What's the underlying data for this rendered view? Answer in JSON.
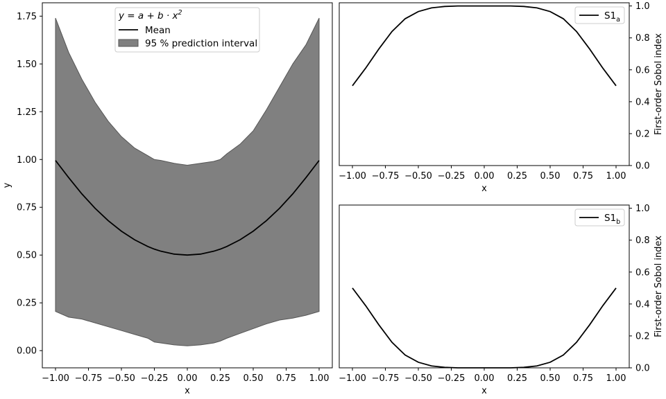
{
  "chart_data": [
    {
      "type": "area",
      "xlabel": "x",
      "ylabel": "y",
      "xlim": [
        -1.1,
        1.1
      ],
      "ylim": [
        -0.09,
        1.82
      ],
      "xticks": [
        -1.0,
        -0.75,
        -0.5,
        -0.25,
        0.0,
        0.25,
        0.5,
        0.75,
        1.0
      ],
      "xtick_labels": [
        "−1.00",
        "−0.75",
        "−0.50",
        "−0.25",
        "0.00",
        "0.25",
        "0.50",
        "0.75",
        "1.00"
      ],
      "yticks": [
        0.0,
        0.25,
        0.5,
        0.75,
        1.0,
        1.25,
        1.5,
        1.75
      ],
      "ytick_labels": [
        "0.00",
        "0.25",
        "0.50",
        "0.75",
        "1.00",
        "1.25",
        "1.50",
        "1.75"
      ],
      "legend": {
        "placement": "upper center",
        "title_plain": "y = a + b · x",
        "title_superscript": "2",
        "entries": [
          "Mean",
          "95 % prediction interval"
        ]
      },
      "x": [
        -1.0,
        -0.9,
        -0.8,
        -0.7,
        -0.6,
        -0.5,
        -0.4,
        -0.3,
        -0.25,
        -0.2,
        -0.1,
        0.0,
        0.1,
        0.2,
        0.25,
        0.3,
        0.4,
        0.5,
        0.6,
        0.7,
        0.8,
        0.9,
        1.0
      ],
      "series": [
        {
          "name": "Mean",
          "values": [
            0.995,
            0.905,
            0.82,
            0.745,
            0.68,
            0.625,
            0.58,
            0.545,
            0.531,
            0.52,
            0.505,
            0.5,
            0.505,
            0.52,
            0.531,
            0.545,
            0.58,
            0.625,
            0.68,
            0.745,
            0.82,
            0.905,
            0.995
          ]
        },
        {
          "name": "95 % prediction interval (upper)",
          "values": [
            1.74,
            1.56,
            1.42,
            1.3,
            1.2,
            1.12,
            1.06,
            1.02,
            1.0,
            0.995,
            0.98,
            0.97,
            0.98,
            0.99,
            1.0,
            1.03,
            1.08,
            1.15,
            1.26,
            1.38,
            1.5,
            1.6,
            1.74
          ]
        },
        {
          "name": "95 % prediction interval (lower)",
          "values": [
            0.205,
            0.175,
            0.165,
            0.145,
            0.125,
            0.105,
            0.085,
            0.065,
            0.045,
            0.04,
            0.03,
            0.025,
            0.03,
            0.04,
            0.05,
            0.065,
            0.09,
            0.115,
            0.14,
            0.16,
            0.17,
            0.185,
            0.205
          ]
        }
      ],
      "grid": false
    },
    {
      "type": "line",
      "xlabel": "x",
      "ylabel": "First-order Sobol index",
      "ylabel_side": "right",
      "xlim": [
        -1.1,
        1.1
      ],
      "ylim": [
        0.0,
        1.02
      ],
      "xticks": [
        -1.0,
        -0.75,
        -0.5,
        -0.25,
        0.0,
        0.25,
        0.5,
        0.75,
        1.0
      ],
      "xtick_labels": [
        "−1.00",
        "−0.75",
        "−0.50",
        "−0.25",
        "0.00",
        "0.25",
        "0.50",
        "0.75",
        "1.00"
      ],
      "yticks": [
        0.0,
        0.2,
        0.4,
        0.6,
        0.8,
        1.0
      ],
      "ytick_labels": [
        "0.0",
        "0.2",
        "0.4",
        "0.6",
        "0.8",
        "1.0"
      ],
      "legend": {
        "placement": "upper right",
        "entries": [
          {
            "base": "S1",
            "sub": "a"
          }
        ]
      },
      "x": [
        -1.0,
        -0.9,
        -0.8,
        -0.7,
        -0.6,
        -0.5,
        -0.4,
        -0.3,
        -0.2,
        -0.1,
        0.0,
        0.1,
        0.2,
        0.3,
        0.4,
        0.5,
        0.6,
        0.7,
        0.8,
        0.9,
        1.0
      ],
      "series": [
        {
          "name": "S1a",
          "values": [
            0.5,
            0.61,
            0.73,
            0.84,
            0.92,
            0.965,
            0.988,
            0.997,
            1.0,
            1.0,
            1.0,
            1.0,
            1.0,
            0.997,
            0.988,
            0.965,
            0.92,
            0.84,
            0.73,
            0.61,
            0.5
          ]
        }
      ],
      "grid": false
    },
    {
      "type": "line",
      "xlabel": "x",
      "ylabel": "First-order Sobol index",
      "ylabel_side": "right",
      "xlim": [
        -1.1,
        1.1
      ],
      "ylim": [
        0.0,
        1.02
      ],
      "xticks": [
        -1.0,
        -0.75,
        -0.5,
        -0.25,
        0.0,
        0.25,
        0.5,
        0.75,
        1.0
      ],
      "xtick_labels": [
        "−1.00",
        "−0.75",
        "−0.50",
        "−0.25",
        "0.00",
        "0.25",
        "0.50",
        "0.75",
        "1.00"
      ],
      "yticks": [
        0.0,
        0.2,
        0.4,
        0.6,
        0.8,
        1.0
      ],
      "ytick_labels": [
        "0.0",
        "0.2",
        "0.4",
        "0.6",
        "0.8",
        "1.0"
      ],
      "legend": {
        "placement": "upper right",
        "entries": [
          {
            "base": "S1",
            "sub": "b"
          }
        ]
      },
      "x": [
        -1.0,
        -0.9,
        -0.8,
        -0.7,
        -0.6,
        -0.5,
        -0.4,
        -0.3,
        -0.2,
        -0.1,
        0.0,
        0.1,
        0.2,
        0.3,
        0.4,
        0.5,
        0.6,
        0.7,
        0.8,
        0.9,
        1.0
      ],
      "series": [
        {
          "name": "S1b",
          "values": [
            0.5,
            0.39,
            0.27,
            0.16,
            0.08,
            0.035,
            0.012,
            0.003,
            0.0,
            0.0,
            0.0,
            0.0,
            0.0,
            0.003,
            0.012,
            0.035,
            0.08,
            0.16,
            0.27,
            0.39,
            0.5
          ]
        }
      ],
      "grid": false
    }
  ]
}
